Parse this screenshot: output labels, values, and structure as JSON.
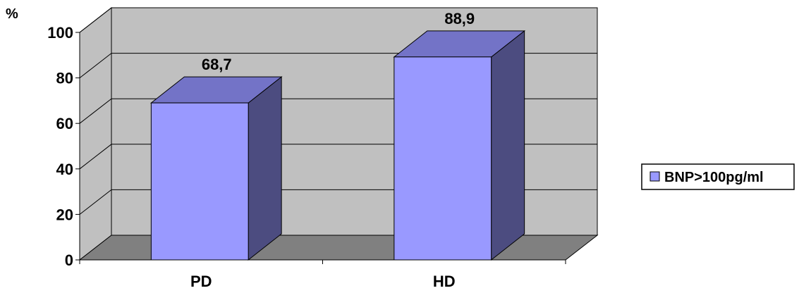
{
  "chart_data": {
    "type": "bar",
    "categories": [
      "PD",
      "HD"
    ],
    "series": [
      {
        "name": "BNP>100pg/ml",
        "values": [
          68.7,
          88.9
        ],
        "value_labels": [
          "68,7",
          "88,9"
        ]
      }
    ],
    "ylabel": "%",
    "ylim": [
      0,
      100
    ],
    "yticks": [
      0,
      20,
      40,
      60,
      80,
      100
    ],
    "grid": true,
    "legend_position": "right",
    "three_d": true,
    "colors": {
      "bar_front": "#9999FF",
      "bar_top": "#7373C7",
      "bar_side": "#4C4C80",
      "wall": "#C0C0C0",
      "floor": "#808080",
      "gridline": "#000000"
    }
  }
}
